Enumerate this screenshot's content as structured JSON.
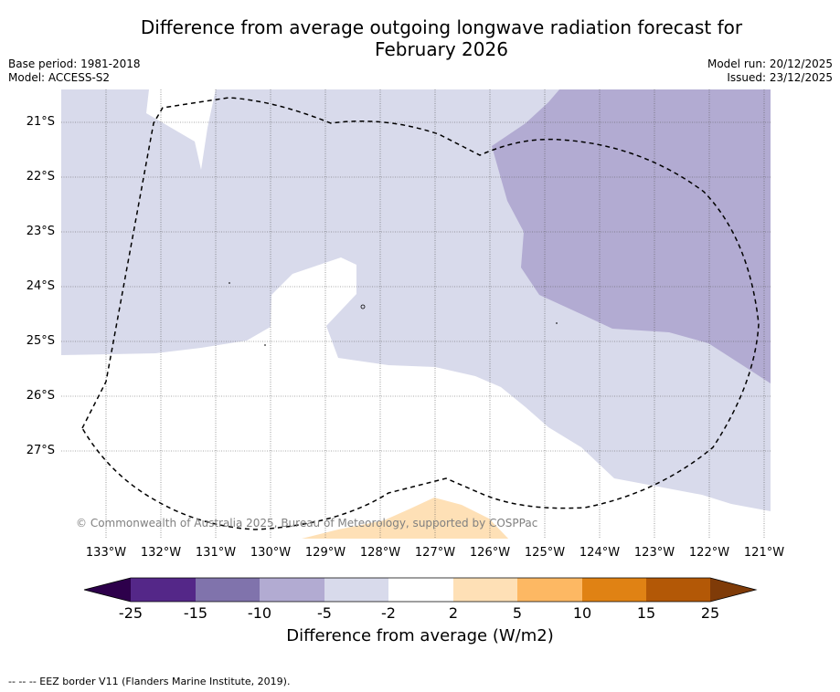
{
  "title_line1": "Difference from average outgoing longwave radiation forecast for",
  "title_line2": "February 2026",
  "meta_left": {
    "base_period": "Base period: 1981-2018",
    "model": "Model: ACCESS-S2"
  },
  "meta_right": {
    "model_run": "Model run: 20/12/2025",
    "issued": "Issued: 23/12/2025"
  },
  "lat_labels": [
    "21°S",
    "22°S",
    "23°S",
    "24°S",
    "25°S",
    "26°S",
    "27°S"
  ],
  "lon_labels": [
    "133°W",
    "132°W",
    "131°W",
    "130°W",
    "129°W",
    "128°W",
    "127°W",
    "126°W",
    "125°W",
    "124°W",
    "123°W",
    "122°W",
    "121°W"
  ],
  "copyright": "© Commonwealth of Australia 2025, Bureau of Meteorology, supported by COSPPac",
  "colorbar": {
    "ticks": [
      "-25",
      "-15",
      "-10",
      "-5",
      "-2",
      "2",
      "5",
      "10",
      "15",
      "25"
    ],
    "colors": [
      "#2d004b",
      "#542788",
      "#8073ac",
      "#b2abd2",
      "#d8daeb",
      "#ffffff",
      "#fee0b6",
      "#fdb863",
      "#e08214",
      "#b35806",
      "#7f3b08"
    ],
    "label": "Difference from average (W/m2)"
  },
  "footnote": "--  --  -- EEZ border V11 (Flanders Marine Institute, 2019).",
  "map_colors": {
    "light_purple": "#d8daeb",
    "mid_purple": "#b2abd2",
    "light_orange": "#fee0b6",
    "white": "#ffffff"
  }
}
